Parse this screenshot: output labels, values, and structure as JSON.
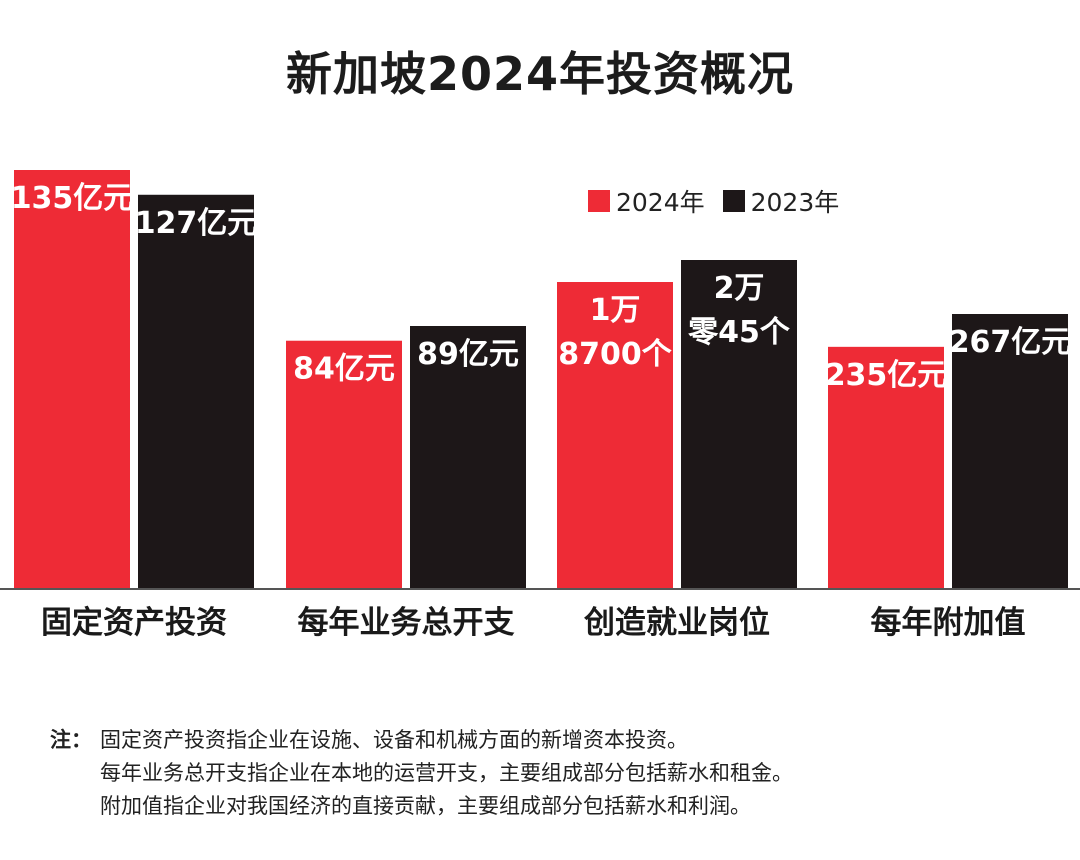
{
  "title": "新加坡2024年投资概况",
  "legend": {
    "a_label": "2024年",
    "b_label": "2023年"
  },
  "colors": {
    "s2024": "#ee2b36",
    "s2023": "#1d1718",
    "axis": "#555555",
    "label_text": "#ffffff"
  },
  "chart_data": {
    "type": "bar",
    "categories": [
      "固定资产投资",
      "每年业务总开支",
      "创造就业岗位",
      "每年附加值"
    ],
    "series": [
      {
        "name": "2024年",
        "values": [
          135,
          84,
          18700,
          235
        ],
        "labels": [
          [
            "135亿元"
          ],
          [
            "84亿元"
          ],
          [
            "1万",
            "8700个"
          ],
          [
            "235亿元"
          ]
        ]
      },
      {
        "name": "2023年",
        "values": [
          127,
          89,
          20045,
          267
        ],
        "labels": [
          [
            "127亿元"
          ],
          [
            "89亿元"
          ],
          [
            "2万",
            "零45个"
          ],
          [
            "267亿元"
          ]
        ]
      }
    ],
    "note": "each category is scaled independently; bars carry their own value labels"
  },
  "notes": {
    "lead": "注：",
    "lines": [
      "固定资产投资指企业在设施、设备和机械方面的新增资本投资。",
      "每年业务总开支指企业在本地的运营开支，主要组成部分包括薪水和租金。",
      "附加值指企业对我国经济的直接贡献，主要组成部分包括薪水和利润。"
    ]
  }
}
